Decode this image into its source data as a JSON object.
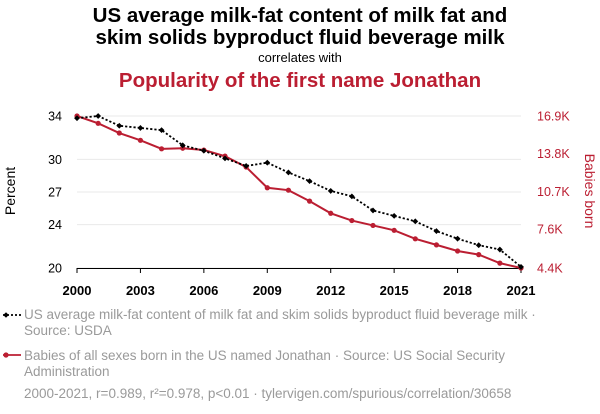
{
  "header": {
    "title_line1": "US average milk-fat content of milk fat and",
    "title_line2": "skim solids byproduct fluid beverage milk",
    "connector": "correlates with",
    "title2": "Popularity of the first name Jonathan"
  },
  "legend": {
    "series1": "US average milk-fat content of milk fat and skim solids byproduct fluid beverage milk · Source: USDA",
    "series2": "Babies of all sexes born in the US named Jonathan · Source: US Social Security Administration"
  },
  "footer": "2000-2021, r=0.989, r²=0.978, p<0.01 · tylervigen.com/spurious/correlation/30658",
  "colors": {
    "series1": "#000000",
    "series2": "#bb1e32",
    "muted": "#9a9a9a"
  },
  "chart_data": {
    "type": "line",
    "x": [
      2000,
      2001,
      2002,
      2003,
      2004,
      2005,
      2006,
      2007,
      2008,
      2009,
      2010,
      2011,
      2012,
      2013,
      2014,
      2015,
      2016,
      2017,
      2018,
      2019,
      2020,
      2021
    ],
    "xticks": [
      2000,
      2003,
      2006,
      2009,
      2012,
      2015,
      2018,
      2021
    ],
    "xlim": [
      2000,
      2021
    ],
    "left_axis": {
      "label": "Percent",
      "ylim": [
        20,
        34
      ],
      "ticks": [
        20,
        24,
        27,
        30,
        34
      ],
      "tick_labels": [
        "20",
        "24",
        "27",
        "30",
        "34"
      ]
    },
    "right_axis": {
      "label": "Babies born",
      "ylim": [
        4400,
        16900
      ],
      "ticks": [
        4400,
        7600,
        10700,
        13800,
        16900
      ],
      "tick_labels": [
        "4.4K",
        "7.6K",
        "10.7K",
        "13.8K",
        "16.9K"
      ]
    },
    "series": [
      {
        "axis": "left",
        "style": "dotted",
        "marker": "diamond",
        "values": [
          33.8,
          34.0,
          33.1,
          32.9,
          32.7,
          31.3,
          30.8,
          30.1,
          29.4,
          29.7,
          28.8,
          28.0,
          27.1,
          26.6,
          25.3,
          24.8,
          24.3,
          23.4,
          22.7,
          22.1,
          21.7,
          20.1
        ]
      },
      {
        "axis": "right",
        "style": "solid",
        "marker": "circle",
        "values": [
          16900,
          16300,
          15500,
          14900,
          14200,
          14250,
          14100,
          13600,
          12700,
          11000,
          10800,
          9900,
          8900,
          8300,
          7900,
          7500,
          6800,
          6300,
          5800,
          5500,
          4800,
          4400
        ]
      }
    ],
    "grid": true
  }
}
